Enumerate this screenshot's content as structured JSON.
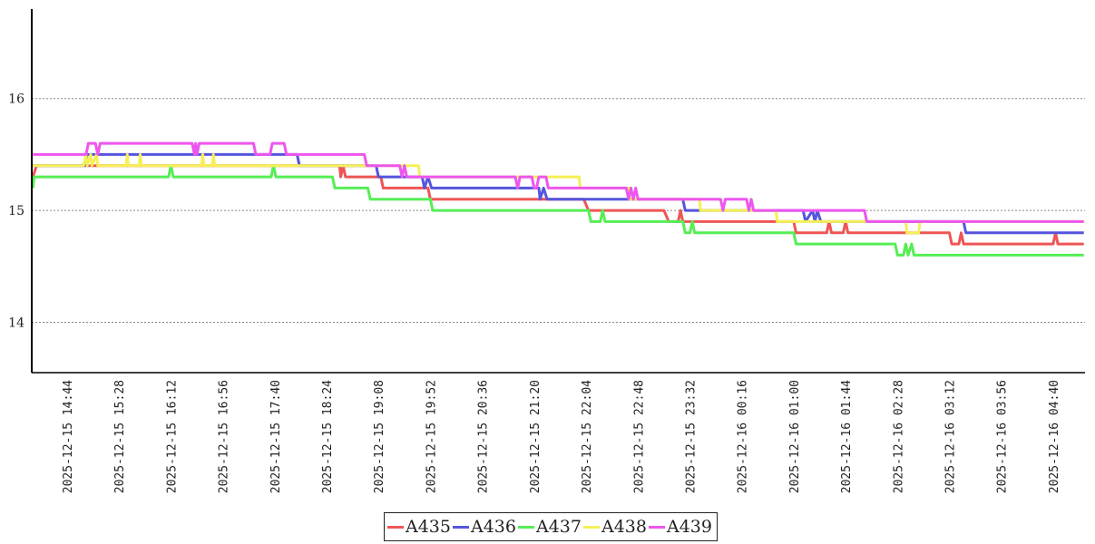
{
  "chart_data": {
    "type": "line",
    "title": "",
    "xlabel": "",
    "ylabel": "",
    "ylim": [
      13.55,
      16.8
    ],
    "yticks": [
      14,
      15,
      16
    ],
    "y_grid": "dotted",
    "x_tick_labels": [
      "2025-12-15 14:44",
      "2025-12-15 15:28",
      "2025-12-15 16:12",
      "2025-12-15 16:56",
      "2025-12-15 17:40",
      "2025-12-15 18:24",
      "2025-12-15 19:08",
      "2025-12-15 19:52",
      "2025-12-15 20:36",
      "2025-12-15 21:20",
      "2025-12-15 22:04",
      "2025-12-15 22:48",
      "2025-12-15 23:32",
      "2025-12-16 00:16",
      "2025-12-16 01:00",
      "2025-12-16 01:44",
      "2025-12-16 02:28",
      "2025-12-16 03:12",
      "2025-12-16 03:56",
      "2025-12-16 04:40"
    ],
    "x_range": [
      "2025-12-15 14:14",
      "2025-12-16 05:07"
    ],
    "legend_position": "bottom-center",
    "series": [
      {
        "name": "A435",
        "color": "#ee5555",
        "points": [
          [
            "2025-12-15 14:15",
            15.3
          ],
          [
            "2025-12-15 14:18",
            15.4
          ],
          [
            "2025-12-15 18:35",
            15.4
          ],
          [
            "2025-12-15 18:36",
            15.3
          ],
          [
            "2025-12-15 18:38",
            15.4
          ],
          [
            "2025-12-15 18:40",
            15.3
          ],
          [
            "2025-12-15 19:10",
            15.3
          ],
          [
            "2025-12-15 19:12",
            15.2
          ],
          [
            "2025-12-15 19:50",
            15.2
          ],
          [
            "2025-12-15 19:52",
            15.1
          ],
          [
            "2025-12-15 22:02",
            15.1
          ],
          [
            "2025-12-15 22:06",
            15.0
          ],
          [
            "2025-12-15 23:10",
            15.0
          ],
          [
            "2025-12-15 23:14",
            14.9
          ],
          [
            "2025-12-15 23:22",
            14.9
          ],
          [
            "2025-12-15 23:24",
            15.0
          ],
          [
            "2025-12-15 23:26",
            14.9
          ],
          [
            "2025-12-16 01:00",
            14.9
          ],
          [
            "2025-12-16 01:02",
            14.8
          ],
          [
            "2025-12-16 01:28",
            14.8
          ],
          [
            "2025-12-16 01:30",
            14.9
          ],
          [
            "2025-12-16 01:32",
            14.8
          ],
          [
            "2025-12-16 01:42",
            14.8
          ],
          [
            "2025-12-16 01:44",
            14.9
          ],
          [
            "2025-12-16 01:46",
            14.8
          ],
          [
            "2025-12-16 03:12",
            14.8
          ],
          [
            "2025-12-16 03:14",
            14.7
          ],
          [
            "2025-12-16 03:20",
            14.7
          ],
          [
            "2025-12-16 03:22",
            14.8
          ],
          [
            "2025-12-16 03:24",
            14.7
          ],
          [
            "2025-12-16 04:40",
            14.7
          ],
          [
            "2025-12-16 04:42",
            14.8
          ],
          [
            "2025-12-16 04:44",
            14.7
          ],
          [
            "2025-12-16 05:06",
            14.7
          ]
        ]
      },
      {
        "name": "A436",
        "color": "#5555dd",
        "points": [
          [
            "2025-12-15 14:15",
            15.4
          ],
          [
            "2025-12-15 14:59",
            15.4
          ],
          [
            "2025-12-15 15:01",
            15.5
          ],
          [
            "2025-12-15 17:59",
            15.5
          ],
          [
            "2025-12-15 18:01",
            15.4
          ],
          [
            "2025-12-15 19:06",
            15.4
          ],
          [
            "2025-12-15 19:08",
            15.3
          ],
          [
            "2025-12-15 19:45",
            15.3
          ],
          [
            "2025-12-15 19:47",
            15.2
          ],
          [
            "2025-12-15 19:50",
            15.3
          ],
          [
            "2025-12-15 19:53",
            15.2
          ],
          [
            "2025-12-15 21:24",
            15.2
          ],
          [
            "2025-12-15 21:25",
            15.1
          ],
          [
            "2025-12-15 21:28",
            15.2
          ],
          [
            "2025-12-15 21:31",
            15.1
          ],
          [
            "2025-12-15 23:26",
            15.1
          ],
          [
            "2025-12-15 23:28",
            15.0
          ],
          [
            "2025-12-16 01:08",
            15.0
          ],
          [
            "2025-12-16 01:10",
            14.9
          ],
          [
            "2025-12-16 01:16",
            15.0
          ],
          [
            "2025-12-16 01:18",
            14.9
          ],
          [
            "2025-12-16 01:20",
            15.0
          ],
          [
            "2025-12-16 01:23",
            14.9
          ],
          [
            "2025-12-16 03:24",
            14.9
          ],
          [
            "2025-12-16 03:26",
            14.8
          ],
          [
            "2025-12-16 05:06",
            14.8
          ]
        ]
      },
      {
        "name": "A437",
        "color": "#55ee55",
        "points": [
          [
            "2025-12-15 14:15",
            15.2
          ],
          [
            "2025-12-15 14:16",
            15.3
          ],
          [
            "2025-12-15 16:10",
            15.3
          ],
          [
            "2025-12-15 16:12",
            15.4
          ],
          [
            "2025-12-15 16:14",
            15.3
          ],
          [
            "2025-12-15 17:37",
            15.3
          ],
          [
            "2025-12-15 17:39",
            15.4
          ],
          [
            "2025-12-15 17:41",
            15.3
          ],
          [
            "2025-12-15 18:29",
            15.3
          ],
          [
            "2025-12-15 18:31",
            15.2
          ],
          [
            "2025-12-15 18:59",
            15.2
          ],
          [
            "2025-12-15 19:01",
            15.1
          ],
          [
            "2025-12-15 19:52",
            15.1
          ],
          [
            "2025-12-15 19:54",
            15.0
          ],
          [
            "2025-12-15 20:40",
            15.0
          ],
          [
            "2025-12-15 22:06",
            15.0
          ],
          [
            "2025-12-15 22:08",
            14.9
          ],
          [
            "2025-12-15 22:16",
            14.9
          ],
          [
            "2025-12-15 22:18",
            15.0
          ],
          [
            "2025-12-15 22:20",
            14.9
          ],
          [
            "2025-12-15 23:26",
            14.9
          ],
          [
            "2025-12-15 23:28",
            14.8
          ],
          [
            "2025-12-15 23:32",
            14.8
          ],
          [
            "2025-12-15 23:34",
            14.9
          ],
          [
            "2025-12-15 23:36",
            14.8
          ],
          [
            "2025-12-16 01:00",
            14.8
          ],
          [
            "2025-12-16 01:02",
            14.7
          ],
          [
            "2025-12-16 02:26",
            14.7
          ],
          [
            "2025-12-16 02:28",
            14.6
          ],
          [
            "2025-12-16 02:33",
            14.6
          ],
          [
            "2025-12-16 02:35",
            14.7
          ],
          [
            "2025-12-16 02:37",
            14.6
          ],
          [
            "2025-12-16 02:40",
            14.7
          ],
          [
            "2025-12-16 02:42",
            14.6
          ],
          [
            "2025-12-16 05:06",
            14.6
          ]
        ]
      },
      {
        "name": "A438",
        "color": "#f5f055",
        "points": [
          [
            "2025-12-15 14:15",
            15.4
          ],
          [
            "2025-12-15 14:58",
            15.4
          ],
          [
            "2025-12-15 15:00",
            15.5
          ],
          [
            "2025-12-15 15:01",
            15.4
          ],
          [
            "2025-12-15 15:04",
            15.5
          ],
          [
            "2025-12-15 15:05",
            15.4
          ],
          [
            "2025-12-15 15:09",
            15.5
          ],
          [
            "2025-12-15 15:10",
            15.4
          ],
          [
            "2025-12-15 15:34",
            15.4
          ],
          [
            "2025-12-15 15:35",
            15.5
          ],
          [
            "2025-12-15 15:36",
            15.4
          ],
          [
            "2025-12-15 15:45",
            15.4
          ],
          [
            "2025-12-15 15:46",
            15.5
          ],
          [
            "2025-12-15 15:47",
            15.4
          ],
          [
            "2025-12-15 16:38",
            15.4
          ],
          [
            "2025-12-15 16:39",
            15.5
          ],
          [
            "2025-12-15 16:40",
            15.4
          ],
          [
            "2025-12-15 16:47",
            15.4
          ],
          [
            "2025-12-15 16:48",
            15.5
          ],
          [
            "2025-12-15 16:49",
            15.4
          ],
          [
            "2025-12-15 19:42",
            15.4
          ],
          [
            "2025-12-15 19:43",
            15.3
          ],
          [
            "2025-12-15 21:58",
            15.3
          ],
          [
            "2025-12-15 21:59",
            15.2
          ],
          [
            "2025-12-15 22:40",
            15.2
          ],
          [
            "2025-12-15 22:41",
            15.1
          ],
          [
            "2025-12-15 23:40",
            15.1
          ],
          [
            "2025-12-15 23:41",
            15.0
          ],
          [
            "2025-12-16 00:45",
            15.0
          ],
          [
            "2025-12-16 00:46",
            14.9
          ],
          [
            "2025-12-16 02:35",
            14.9
          ],
          [
            "2025-12-16 02:36",
            14.8
          ],
          [
            "2025-12-16 02:46",
            14.8
          ],
          [
            "2025-12-16 02:47",
            14.9
          ],
          [
            "2025-12-16 05:06",
            14.9
          ]
        ]
      },
      {
        "name": "A439",
        "color": "#ee55ee",
        "points": [
          [
            "2025-12-15 14:15",
            15.5
          ],
          [
            "2025-12-15 15:00",
            15.5
          ],
          [
            "2025-12-15 15:02",
            15.6
          ],
          [
            "2025-12-15 15:08",
            15.6
          ],
          [
            "2025-12-15 15:10",
            15.5
          ],
          [
            "2025-12-15 15:12",
            15.6
          ],
          [
            "2025-12-15 16:30",
            15.6
          ],
          [
            "2025-12-15 16:32",
            15.5
          ],
          [
            "2025-12-15 16:33",
            15.6
          ],
          [
            "2025-12-15 16:34",
            15.5
          ],
          [
            "2025-12-15 16:36",
            15.6
          ],
          [
            "2025-12-15 17:22",
            15.6
          ],
          [
            "2025-12-15 17:24",
            15.5
          ],
          [
            "2025-12-15 17:36",
            15.5
          ],
          [
            "2025-12-15 17:38",
            15.6
          ],
          [
            "2025-12-15 17:48",
            15.6
          ],
          [
            "2025-12-15 17:50",
            15.5
          ],
          [
            "2025-12-15 18:56",
            15.5
          ],
          [
            "2025-12-15 18:58",
            15.4
          ],
          [
            "2025-12-15 19:26",
            15.4
          ],
          [
            "2025-12-15 19:28",
            15.3
          ],
          [
            "2025-12-15 19:30",
            15.4
          ],
          [
            "2025-12-15 19:32",
            15.3
          ],
          [
            "2025-12-15 21:04",
            15.3
          ],
          [
            "2025-12-15 21:06",
            15.2
          ],
          [
            "2025-12-15 21:08",
            15.3
          ],
          [
            "2025-12-15 21:18",
            15.3
          ],
          [
            "2025-12-15 21:20",
            15.2
          ],
          [
            "2025-12-15 21:22",
            15.2
          ],
          [
            "2025-12-15 21:24",
            15.3
          ],
          [
            "2025-12-15 21:30",
            15.3
          ],
          [
            "2025-12-15 21:32",
            15.2
          ],
          [
            "2025-12-15 22:38",
            15.2
          ],
          [
            "2025-12-15 22:40",
            15.1
          ],
          [
            "2025-12-15 22:42",
            15.2
          ],
          [
            "2025-12-15 22:44",
            15.1
          ],
          [
            "2025-12-15 22:46",
            15.2
          ],
          [
            "2025-12-15 22:48",
            15.1
          ],
          [
            "2025-12-15 23:58",
            15.1
          ],
          [
            "2025-12-16 00:00",
            15.0
          ],
          [
            "2025-12-16 00:02",
            15.1
          ],
          [
            "2025-12-16 00:20",
            15.1
          ],
          [
            "2025-12-16 00:22",
            15.0
          ],
          [
            "2025-12-16 00:24",
            15.1
          ],
          [
            "2025-12-16 00:26",
            15.0
          ],
          [
            "2025-12-16 02:00",
            15.0
          ],
          [
            "2025-12-16 02:02",
            14.9
          ],
          [
            "2025-12-16 05:06",
            14.9
          ]
        ]
      }
    ]
  }
}
